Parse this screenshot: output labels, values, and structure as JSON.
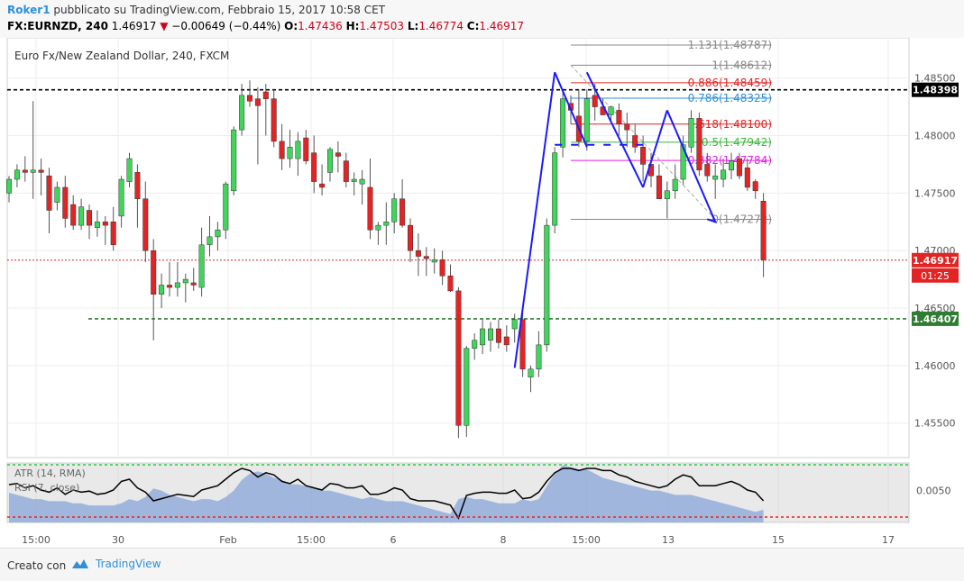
{
  "header": {
    "author": "Roker1",
    "published": " pubblicato su TradingView.com, Febbraio 15, 2017 10:58 CET",
    "symbol": "FX:EURNZD, 240",
    "last": "1.46917",
    "change": "−0.00649 (−0.44%)",
    "ohlc": {
      "o_label": "O:",
      "o": "1.47436",
      "h_label": "H:",
      "h": "1.47503",
      "l_label": "L:",
      "l": "1.46774",
      "c_label": "C:",
      "c": "1.46917"
    }
  },
  "footer": {
    "created": "Creato con",
    "brand": "TradingView"
  },
  "colors": {
    "up": "#3fd65a",
    "down": "#e32424",
    "wave": "#1a1aff",
    "atr_fill": "#8fa9d8",
    "rsi": "#000000"
  },
  "chart_data": {
    "type": "candlestick",
    "title": "Euro Fx/New Zealand Dollar, 240, FXCM",
    "y_ticks": [
      "1.48500",
      "1.48000",
      "1.47500",
      "1.47000",
      "1.46500",
      "1.46000",
      "1.45500"
    ],
    "ylim": [
      1.452,
      1.4885
    ],
    "x_ticks": [
      "15:00",
      "30",
      "Feb",
      "15:00",
      "6",
      "8",
      "15:00",
      "13",
      "15",
      "17"
    ],
    "candles": [
      [
        1.475,
        1.4765,
        1.4742,
        1.4762
      ],
      [
        1.4762,
        1.4775,
        1.4755,
        1.477
      ],
      [
        1.477,
        1.4782,
        1.476,
        1.4768
      ],
      [
        1.4768,
        1.483,
        1.4745,
        1.477
      ],
      [
        1.477,
        1.478,
        1.4748,
        1.4768
      ],
      [
        1.4765,
        1.4772,
        1.4715,
        1.4735
      ],
      [
        1.4742,
        1.476,
        1.4735,
        1.4755
      ],
      [
        1.4755,
        1.4765,
        1.472,
        1.4728
      ],
      [
        1.474,
        1.4748,
        1.4718,
        1.4722
      ],
      [
        1.4722,
        1.4745,
        1.4718,
        1.4738
      ],
      [
        1.4735,
        1.474,
        1.471,
        1.4722
      ],
      [
        1.472,
        1.4735,
        1.4712,
        1.4725
      ],
      [
        1.4725,
        1.473,
        1.4705,
        1.4722
      ],
      [
        1.4725,
        1.4738,
        1.47,
        1.4705
      ],
      [
        1.473,
        1.4765,
        1.472,
        1.4762
      ],
      [
        1.476,
        1.4785,
        1.4755,
        1.478
      ],
      [
        1.4768,
        1.4775,
        1.472,
        1.4745
      ],
      [
        1.4745,
        1.476,
        1.469,
        1.47
      ],
      [
        1.47,
        1.471,
        1.4622,
        1.4662
      ],
      [
        1.4662,
        1.468,
        1.465,
        1.467
      ],
      [
        1.467,
        1.469,
        1.466,
        1.4668
      ],
      [
        1.4668,
        1.469,
        1.466,
        1.4672
      ],
      [
        1.4672,
        1.468,
        1.4655,
        1.4675
      ],
      [
        1.4672,
        1.4685,
        1.4665,
        1.467
      ],
      [
        1.4668,
        1.472,
        1.466,
        1.4705
      ],
      [
        1.4705,
        1.473,
        1.4695,
        1.4712
      ],
      [
        1.4712,
        1.4725,
        1.47,
        1.4718
      ],
      [
        1.4718,
        1.476,
        1.471,
        1.4758
      ],
      [
        1.4752,
        1.4808,
        1.4748,
        1.4805
      ],
      [
        1.4805,
        1.4845,
        1.48,
        1.4835
      ],
      [
        1.4835,
        1.4848,
        1.4825,
        1.483
      ],
      [
        1.4832,
        1.4842,
        1.4775,
        1.4826
      ],
      [
        1.4838,
        1.4845,
        1.48,
        1.4832
      ],
      [
        1.4832,
        1.484,
        1.479,
        1.4795
      ],
      [
        1.4795,
        1.481,
        1.477,
        1.478
      ],
      [
        1.478,
        1.4805,
        1.4772,
        1.479
      ],
      [
        1.478,
        1.4803,
        1.4765,
        1.4795
      ],
      [
        1.4798,
        1.4805,
        1.4775,
        1.4778
      ],
      [
        1.4785,
        1.48,
        1.475,
        1.476
      ],
      [
        1.4758,
        1.4775,
        1.4748,
        1.4755
      ],
      [
        1.4768,
        1.479,
        1.476,
        1.4788
      ],
      [
        1.4785,
        1.4795,
        1.4768,
        1.4782
      ],
      [
        1.4778,
        1.4785,
        1.4755,
        1.476
      ],
      [
        1.476,
        1.4768,
        1.4748,
        1.4762
      ],
      [
        1.4758,
        1.477,
        1.474,
        1.4762
      ],
      [
        1.4755,
        1.478,
        1.471,
        1.4718
      ],
      [
        1.4718,
        1.4725,
        1.4705,
        1.4722
      ],
      [
        1.4722,
        1.4742,
        1.4705,
        1.4725
      ],
      [
        1.4725,
        1.475,
        1.4715,
        1.4745
      ],
      [
        1.4745,
        1.4762,
        1.472,
        1.4722
      ],
      [
        1.4722,
        1.4728,
        1.469,
        1.47
      ],
      [
        1.47,
        1.4715,
        1.4678,
        1.4695
      ],
      [
        1.4695,
        1.4703,
        1.4678,
        1.4693
      ],
      [
        1.469,
        1.4702,
        1.468,
        1.4692
      ],
      [
        1.4692,
        1.47,
        1.467,
        1.4678
      ],
      [
        1.4678,
        1.4688,
        1.4664,
        1.4665
      ],
      [
        1.4665,
        1.4668,
        1.4537,
        1.4548
      ],
      [
        1.4548,
        1.4617,
        1.4538,
        1.4615
      ],
      [
        1.4615,
        1.4628,
        1.4605,
        1.4622
      ],
      [
        1.4618,
        1.464,
        1.461,
        1.4632
      ],
      [
        1.4622,
        1.4638,
        1.4612,
        1.4632
      ],
      [
        1.4632,
        1.464,
        1.4615,
        1.462
      ],
      [
        1.4625,
        1.4635,
        1.4612,
        1.4618
      ],
      [
        1.4632,
        1.4645,
        1.462,
        1.464
      ],
      [
        1.464,
        1.4648,
        1.459,
        1.4597
      ],
      [
        1.459,
        1.46,
        1.4577,
        1.4597
      ],
      [
        1.4597,
        1.463,
        1.459,
        1.4618
      ],
      [
        1.4618,
        1.4728,
        1.4612,
        1.4722
      ],
      [
        1.4722,
        1.479,
        1.4715,
        1.4785
      ],
      [
        1.479,
        1.484,
        1.4781,
        1.4832
      ],
      [
        1.4828,
        1.4835,
        1.481,
        1.4822
      ],
      [
        1.4817,
        1.484,
        1.479,
        1.4795
      ],
      [
        1.4795,
        1.484,
        1.4787,
        1.4832
      ],
      [
        1.4835,
        1.4845,
        1.4813,
        1.4825
      ],
      [
        1.4825,
        1.4832,
        1.4818,
        1.4818
      ],
      [
        1.4818,
        1.4826,
        1.4812,
        1.4825
      ],
      [
        1.4822,
        1.4828,
        1.48,
        1.481
      ],
      [
        1.481,
        1.482,
        1.479,
        1.4805
      ],
      [
        1.48,
        1.481,
        1.4785,
        1.479
      ],
      [
        1.479,
        1.48,
        1.476,
        1.4775
      ],
      [
        1.4775,
        1.4785,
        1.4755,
        1.4765
      ],
      [
        1.4765,
        1.4775,
        1.4745,
        1.4745
      ],
      [
        1.4745,
        1.476,
        1.4728,
        1.4752
      ],
      [
        1.4752,
        1.4775,
        1.4745,
        1.4762
      ],
      [
        1.4762,
        1.48,
        1.4757,
        1.4792
      ],
      [
        1.479,
        1.4822,
        1.4785,
        1.4815
      ],
      [
        1.4815,
        1.482,
        1.4765,
        1.477
      ],
      [
        1.4775,
        1.4785,
        1.476,
        1.4765
      ],
      [
        1.4762,
        1.4775,
        1.4745,
        1.4765
      ],
      [
        1.4762,
        1.478,
        1.4755,
        1.477
      ],
      [
        1.477,
        1.4785,
        1.4762,
        1.4778
      ],
      [
        1.478,
        1.4785,
        1.4762,
        1.4765
      ],
      [
        1.4772,
        1.478,
        1.4752,
        1.4755
      ],
      [
        1.476,
        1.4762,
        1.4745,
        1.4752
      ],
      [
        1.4743,
        1.475,
        1.4677,
        1.4692
      ]
    ],
    "price_lines": [
      {
        "price": 1.48398,
        "label": "1.48398",
        "color": "#000000",
        "style": "dashed"
      },
      {
        "price": 1.46917,
        "label": "1.46917",
        "sublabel": "01:25",
        "color": "#e32424",
        "style": "dotted"
      },
      {
        "price": 1.46407,
        "label": "1.46407",
        "color": "#2e7d32",
        "style": "dashed"
      }
    ],
    "fib_levels": [
      {
        "ratio": "1.131",
        "price": 1.48787,
        "label": "1.131(1.48787)",
        "color": "#888888"
      },
      {
        "ratio": "1",
        "price": 1.48612,
        "label": "1(1.48612)",
        "color": "#888888"
      },
      {
        "ratio": "0.886",
        "price": 1.48459,
        "label": "0.886(1.48459)",
        "color": "#e32424"
      },
      {
        "ratio": "0.786",
        "price": 1.48325,
        "label": "0.786(1.48325)",
        "color": "#2f8fd8"
      },
      {
        "ratio": "0.618",
        "price": 1.481,
        "label": "0.618(1.48100)",
        "color": "#e32424"
      },
      {
        "ratio": "0.5",
        "price": 1.47942,
        "label": "0.5(1.47942)",
        "color": "#3fb83f"
      },
      {
        "ratio": "0.382",
        "price": 1.47784,
        "label": "0.382(1.47784)",
        "color": "#e020e0"
      },
      {
        "ratio": "0",
        "price": 1.47272,
        "label": "0(1.47272)",
        "color": "#888888"
      }
    ],
    "wave_lines": [
      {
        "from": [
          63,
          1.4598
        ],
        "to": [
          68,
          1.4855
        ]
      },
      {
        "from": [
          68,
          1.4855
        ],
        "to": [
          72,
          1.479
        ]
      },
      {
        "from": [
          72,
          1.4855
        ],
        "to": [
          79,
          1.4755
        ]
      },
      {
        "from": [
          79,
          1.4755
        ],
        "to": [
          82,
          1.4822
        ]
      },
      {
        "from": [
          82,
          1.4822
        ],
        "to": [
          88,
          1.4725
        ]
      }
    ],
    "indicator": {
      "labels": [
        "ATR (14, RMA)",
        "RSI (7, close)"
      ],
      "y_tick": "0.0050",
      "atr": [
        0.0049,
        0.0048,
        0.0047,
        0.0046,
        0.0046,
        0.0045,
        0.0045,
        0.0045,
        0.0044,
        0.0044,
        0.0043,
        0.0043,
        0.0043,
        0.0043,
        0.0044,
        0.0046,
        0.0045,
        0.0047,
        0.0051,
        0.005,
        0.0048,
        0.0047,
        0.0046,
        0.0045,
        0.0046,
        0.0046,
        0.0045,
        0.0047,
        0.005,
        0.0055,
        0.0058,
        0.0059,
        0.0058,
        0.0056,
        0.0055,
        0.0053,
        0.0053,
        0.0052,
        0.0051,
        0.005,
        0.005,
        0.0049,
        0.0048,
        0.0047,
        0.0046,
        0.0047,
        0.0046,
        0.0045,
        0.0045,
        0.0045,
        0.0044,
        0.0043,
        0.0042,
        0.0041,
        0.004,
        0.0039,
        0.0046,
        0.0047,
        0.0046,
        0.0046,
        0.0045,
        0.0044,
        0.0044,
        0.0044,
        0.0046,
        0.0045,
        0.0046,
        0.0052,
        0.0058,
        0.0062,
        0.0061,
        0.006,
        0.006,
        0.0058,
        0.0056,
        0.0055,
        0.0054,
        0.0053,
        0.0052,
        0.0051,
        0.005,
        0.005,
        0.0049,
        0.0048,
        0.0048,
        0.0048,
        0.0047,
        0.0046,
        0.0045,
        0.0044,
        0.0043,
        0.0042,
        0.0041,
        0.004,
        0.0041
      ],
      "rsi": [
        55,
        56,
        52,
        54,
        50,
        48,
        52,
        46,
        50,
        48,
        49,
        46,
        47,
        50,
        58,
        60,
        52,
        48,
        40,
        42,
        44,
        46,
        45,
        44,
        50,
        52,
        54,
        60,
        66,
        70,
        68,
        62,
        66,
        64,
        58,
        56,
        60,
        54,
        52,
        50,
        56,
        55,
        52,
        52,
        54,
        46,
        46,
        48,
        52,
        50,
        42,
        40,
        40,
        40,
        38,
        36,
        24,
        45,
        47,
        48,
        48,
        47,
        47,
        50,
        42,
        43,
        48,
        58,
        66,
        70,
        70,
        68,
        70,
        70,
        68,
        68,
        64,
        62,
        58,
        56,
        54,
        52,
        54,
        60,
        64,
        62,
        54,
        54,
        54,
        56,
        58,
        55,
        50,
        48,
        40
      ]
    }
  }
}
